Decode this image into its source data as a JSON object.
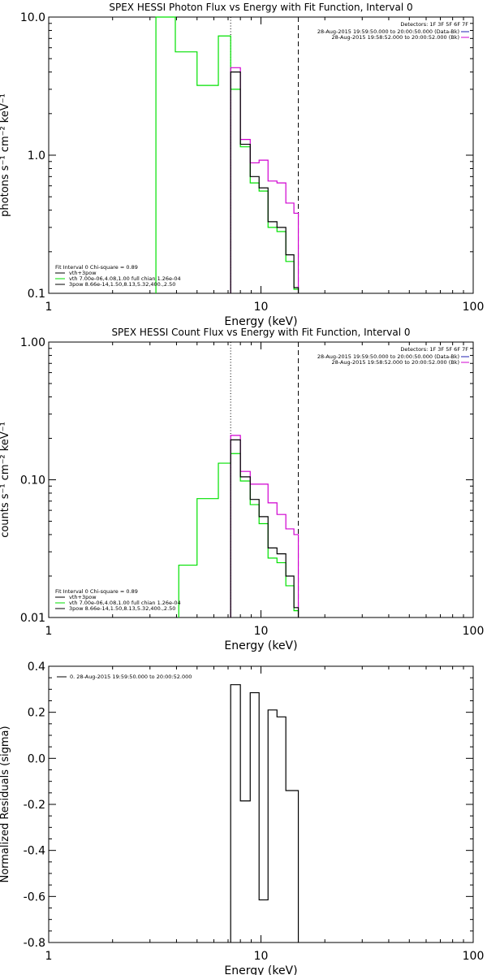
{
  "colors": {
    "black": "#000000",
    "green": "#00e000",
    "magenta": "#d000d0",
    "legend_blue": "#2020b0",
    "background": "#ffffff"
  },
  "chart_data": [
    {
      "type": "line",
      "title": "SPEX HESSI Photon Flux vs Energy with Fit Function, Interval 0",
      "xlabel": "Energy (keV)",
      "ylabel": "photons s⁻¹ cm⁻² keV⁻¹",
      "xscale": "log",
      "yscale": "log",
      "xlim": [
        1,
        100
      ],
      "ylim": [
        0.1,
        10
      ],
      "xticklabels": [
        "1",
        "10",
        "100"
      ],
      "yticklabels": [
        "0.1",
        "1.0",
        "10.0"
      ],
      "ytickvalues": [
        0.1,
        1,
        10
      ],
      "vlines": [
        {
          "x": 7.2,
          "style": "dotted"
        },
        {
          "x": 15,
          "style": "dashed"
        }
      ],
      "detectors": "Detectors: 1F 3F 5F 6F 7F",
      "data_legend": [
        {
          "label": "28-Aug-2015 19:59:50.000 to 20:00:50.000 (Data-Bk)",
          "color": "legend_blue"
        },
        {
          "label": "28-Aug-2015 19:58:52.000 to 20:00:52.000 (Bk)",
          "color": "magenta"
        }
      ],
      "fit_legend": {
        "header": "Fit Interval 0   Chi-square = 0.89",
        "entries": [
          {
            "label": "vth+3pow",
            "color": "black"
          },
          {
            "label": "vth 7.00e-06,4.08,1.00  full chian 1.26e-04",
            "color": "green"
          },
          {
            "label": "3pow 8.66e-14,1.50,8.13,5.32,400.,2.50",
            "color": "black"
          }
        ]
      },
      "series": [
        {
          "role": "fit",
          "color": "green",
          "edges": [
            3.2,
            3.95,
            5,
            6.3,
            7.2,
            8,
            8.9,
            9.8,
            10.8,
            11.9,
            13.1,
            14.3,
            15
          ],
          "values": [
            10,
            5.6,
            3.2,
            7.3,
            3.0,
            1.15,
            0.63,
            0.55,
            0.3,
            0.28,
            0.17,
            0.107
          ]
        },
        {
          "role": "bk",
          "color": "magenta",
          "edges": [
            7.2,
            8,
            8.9,
            9.8,
            10.8,
            11.9,
            13.1,
            14.3,
            15
          ],
          "values": [
            4.3,
            1.3,
            0.88,
            0.92,
            0.65,
            0.63,
            0.45,
            0.38
          ]
        },
        {
          "role": "data",
          "color": "black",
          "edges": [
            7.2,
            8,
            8.9,
            9.8,
            10.8,
            11.9,
            13.1,
            14.3,
            15
          ],
          "values": [
            4.0,
            1.2,
            0.7,
            0.58,
            0.33,
            0.3,
            0.19,
            0.11
          ]
        }
      ]
    },
    {
      "type": "line",
      "title": "SPEX HESSI Count Flux vs Energy with Fit Function, Interval 0",
      "xlabel": "Energy (keV)",
      "ylabel": "counts s⁻¹ cm⁻² keV⁻¹",
      "xscale": "log",
      "yscale": "log",
      "xlim": [
        1,
        100
      ],
      "ylim": [
        0.01,
        1
      ],
      "xticklabels": [
        "1",
        "10",
        "100"
      ],
      "yticklabels": [
        "0.01",
        "0.10",
        "1.00"
      ],
      "ytickvalues": [
        0.01,
        0.1,
        1
      ],
      "vlines": [
        {
          "x": 7.2,
          "style": "dotted"
        },
        {
          "x": 15,
          "style": "dashed"
        }
      ],
      "detectors": "Detectors: 1F 3F 5F 6F 7F",
      "data_legend": [
        {
          "label": "28-Aug-2015 19:59:50.000 to 20:00:50.000 (Data-Bk)",
          "color": "legend_blue"
        },
        {
          "label": "28-Aug-2015 19:58:52.000 to 20:00:52.000 (Bk)",
          "color": "magenta"
        }
      ],
      "fit_legend": {
        "header": "Fit Interval 0   Chi-square = 0.89",
        "entries": [
          {
            "label": "vth+3pow",
            "color": "black"
          },
          {
            "label": "vth 7.00e-06,4.08,1.00  full chian 1.26e-04",
            "color": "green"
          },
          {
            "label": "3pow 8.66e-14,1.50,8.13,5.32,400.,2.50",
            "color": "black"
          }
        ]
      },
      "series": [
        {
          "role": "fit",
          "color": "green",
          "edges": [
            4.1,
            5,
            6.3,
            7.2,
            8,
            8.9,
            9.8,
            10.8,
            11.9,
            13.1,
            14.3,
            15
          ],
          "values": [
            0.024,
            0.073,
            0.132,
            0.155,
            0.098,
            0.066,
            0.048,
            0.027,
            0.025,
            0.017,
            0.0112
          ]
        },
        {
          "role": "bk",
          "color": "magenta",
          "edges": [
            7.2,
            8,
            8.9,
            9.8,
            10.8,
            11.9,
            13.1,
            14.3,
            15
          ],
          "values": [
            0.21,
            0.115,
            0.093,
            0.093,
            0.068,
            0.056,
            0.044,
            0.04
          ]
        },
        {
          "role": "data",
          "color": "black",
          "edges": [
            7.2,
            8,
            8.9,
            9.8,
            10.8,
            11.9,
            13.1,
            14.3,
            15
          ],
          "values": [
            0.195,
            0.105,
            0.072,
            0.054,
            0.032,
            0.029,
            0.02,
            0.0118
          ]
        }
      ]
    },
    {
      "type": "line",
      "title": "",
      "xlabel": "Energy (keV)",
      "ylabel": "Normalized Residuals (sigma)",
      "xscale": "log",
      "yscale": "linear",
      "xlim": [
        1,
        100
      ],
      "ylim": [
        -0.8,
        0.4
      ],
      "xticklabels": [
        "1",
        "10",
        "100"
      ],
      "yticklabels": [
        "-0.8",
        "-0.6",
        "-0.4",
        "-0.2",
        "0.0",
        "0.2",
        "0.4"
      ],
      "ytickvalues": [
        -0.8,
        -0.6,
        -0.4,
        -0.2,
        0,
        0.2,
        0.4
      ],
      "legend": [
        {
          "label": "0. 28-Aug-2015 19:59:50.000 to 20:00:52.000",
          "color": "black"
        }
      ],
      "series": [
        {
          "name": "0. 28-Aug-2015 19:59:50.000 to 20:00:52.000",
          "color": "black",
          "edges": [
            7.2,
            8,
            8.9,
            9.8,
            10.8,
            11.9,
            13.1,
            14.3,
            15
          ],
          "values": [
            0.32,
            -0.185,
            0.285,
            -0.615,
            0.21,
            0.18,
            -0.14,
            -0.14
          ]
        }
      ]
    }
  ]
}
